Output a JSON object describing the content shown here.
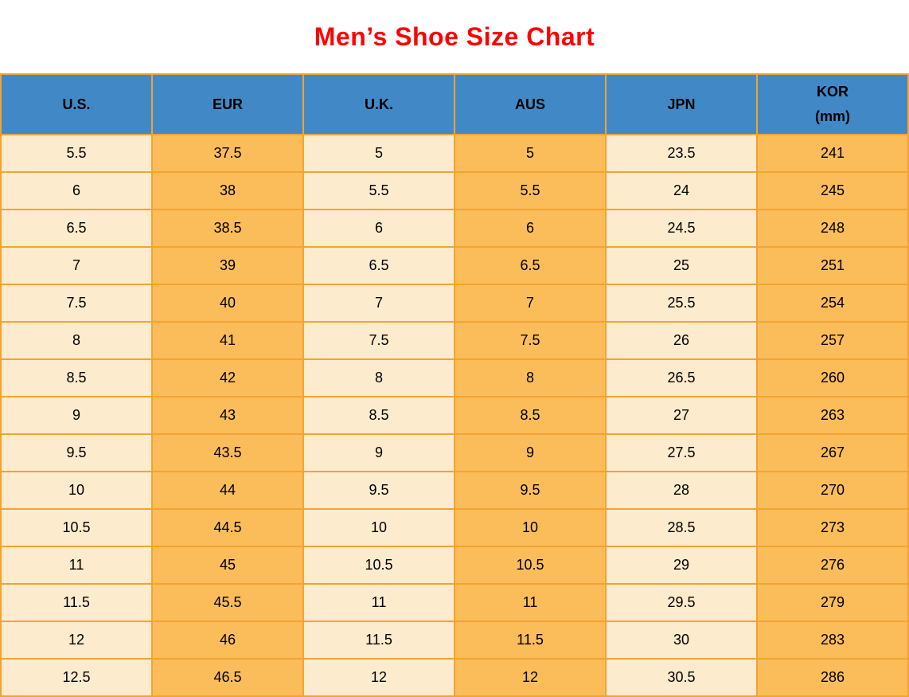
{
  "page": {
    "title": "Men’s Shoe Size Chart"
  },
  "colors": {
    "title_red": "#FF0000",
    "header_blue": "#4189C6",
    "cell_light": "#FDEBCD",
    "cell_orange": "#FBBC5A",
    "border_orange": "#F2A430",
    "text_black": "#000000"
  },
  "chart_data": {
    "type": "table",
    "title": "Men’s Shoe Size Chart",
    "columns": [
      "U.S.",
      "EUR",
      "U.K.",
      "AUS",
      "JPN",
      "KOR\n(mm)"
    ],
    "rows": [
      [
        "5.5",
        "37.5",
        "5",
        "5",
        "23.5",
        "241"
      ],
      [
        "6",
        "38",
        "5.5",
        "5.5",
        "24",
        "245"
      ],
      [
        "6.5",
        "38.5",
        "6",
        "6",
        "24.5",
        "248"
      ],
      [
        "7",
        "39",
        "6.5",
        "6.5",
        "25",
        "251"
      ],
      [
        "7.5",
        "40",
        "7",
        "7",
        "25.5",
        "254"
      ],
      [
        "8",
        "41",
        "7.5",
        "7.5",
        "26",
        "257"
      ],
      [
        "8.5",
        "42",
        "8",
        "8",
        "26.5",
        "260"
      ],
      [
        "9",
        "43",
        "8.5",
        "8.5",
        "27",
        "263"
      ],
      [
        "9.5",
        "43.5",
        "9",
        "9",
        "27.5",
        "267"
      ],
      [
        "10",
        "44",
        "9.5",
        "9.5",
        "28",
        "270"
      ],
      [
        "10.5",
        "44.5",
        "10",
        "10",
        "28.5",
        "273"
      ],
      [
        "11",
        "45",
        "10.5",
        "10.5",
        "29",
        "276"
      ],
      [
        "11.5",
        "45.5",
        "11",
        "11",
        "29.5",
        "279"
      ],
      [
        "12",
        "46",
        "11.5",
        "11.5",
        "30",
        "283"
      ],
      [
        "12.5",
        "46.5",
        "12",
        "12",
        "30.5",
        "286"
      ]
    ],
    "layout": {
      "header_fill": "blue",
      "column_fill_pattern": [
        "light",
        "orange",
        "light",
        "orange",
        "light",
        "orange"
      ],
      "grid": true,
      "legend": "none"
    }
  }
}
